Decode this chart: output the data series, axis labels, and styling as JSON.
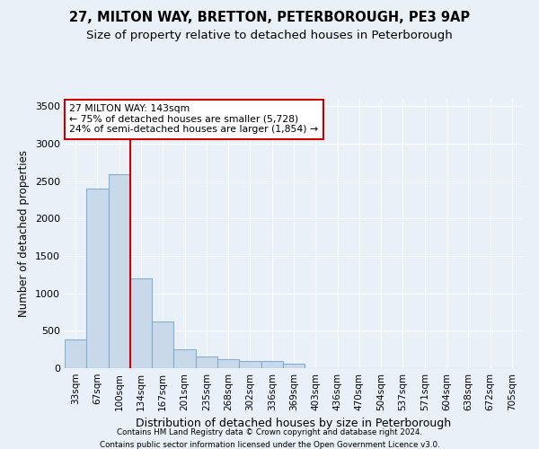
{
  "title1": "27, MILTON WAY, BRETTON, PETERBOROUGH, PE3 9AP",
  "title2": "Size of property relative to detached houses in Peterborough",
  "xlabel": "Distribution of detached houses by size in Peterborough",
  "ylabel": "Number of detached properties",
  "footnote1": "Contains HM Land Registry data © Crown copyright and database right 2024.",
  "footnote2": "Contains public sector information licensed under the Open Government Licence v3.0.",
  "categories": [
    "33sqm",
    "67sqm",
    "100sqm",
    "134sqm",
    "167sqm",
    "201sqm",
    "235sqm",
    "268sqm",
    "302sqm",
    "336sqm",
    "369sqm",
    "403sqm",
    "436sqm",
    "470sqm",
    "504sqm",
    "537sqm",
    "571sqm",
    "604sqm",
    "638sqm",
    "672sqm",
    "705sqm"
  ],
  "values": [
    390,
    2400,
    2590,
    1200,
    620,
    250,
    155,
    125,
    100,
    95,
    60,
    0,
    0,
    0,
    0,
    0,
    0,
    0,
    0,
    0,
    0
  ],
  "bar_color": "#c9d9ea",
  "bar_edge_color": "#7fafd4",
  "vline_x": 2.5,
  "vline_color": "#cc0000",
  "annotation_text": "27 MILTON WAY: 143sqm\n← 75% of detached houses are smaller (5,728)\n24% of semi-detached houses are larger (1,854) →",
  "annotation_box_color": "#ffffff",
  "annotation_box_edge": "#cc0000",
  "ylim": [
    0,
    3600
  ],
  "yticks": [
    0,
    500,
    1000,
    1500,
    2000,
    2500,
    3000,
    3500
  ],
  "bg_color": "#eaf0f8",
  "plot_bg_color": "#eaf0f8",
  "grid_color": "#ffffff",
  "title_fontsize": 10.5,
  "subtitle_fontsize": 9.5,
  "axis_label_fontsize": 8.5,
  "tick_fontsize": 8
}
